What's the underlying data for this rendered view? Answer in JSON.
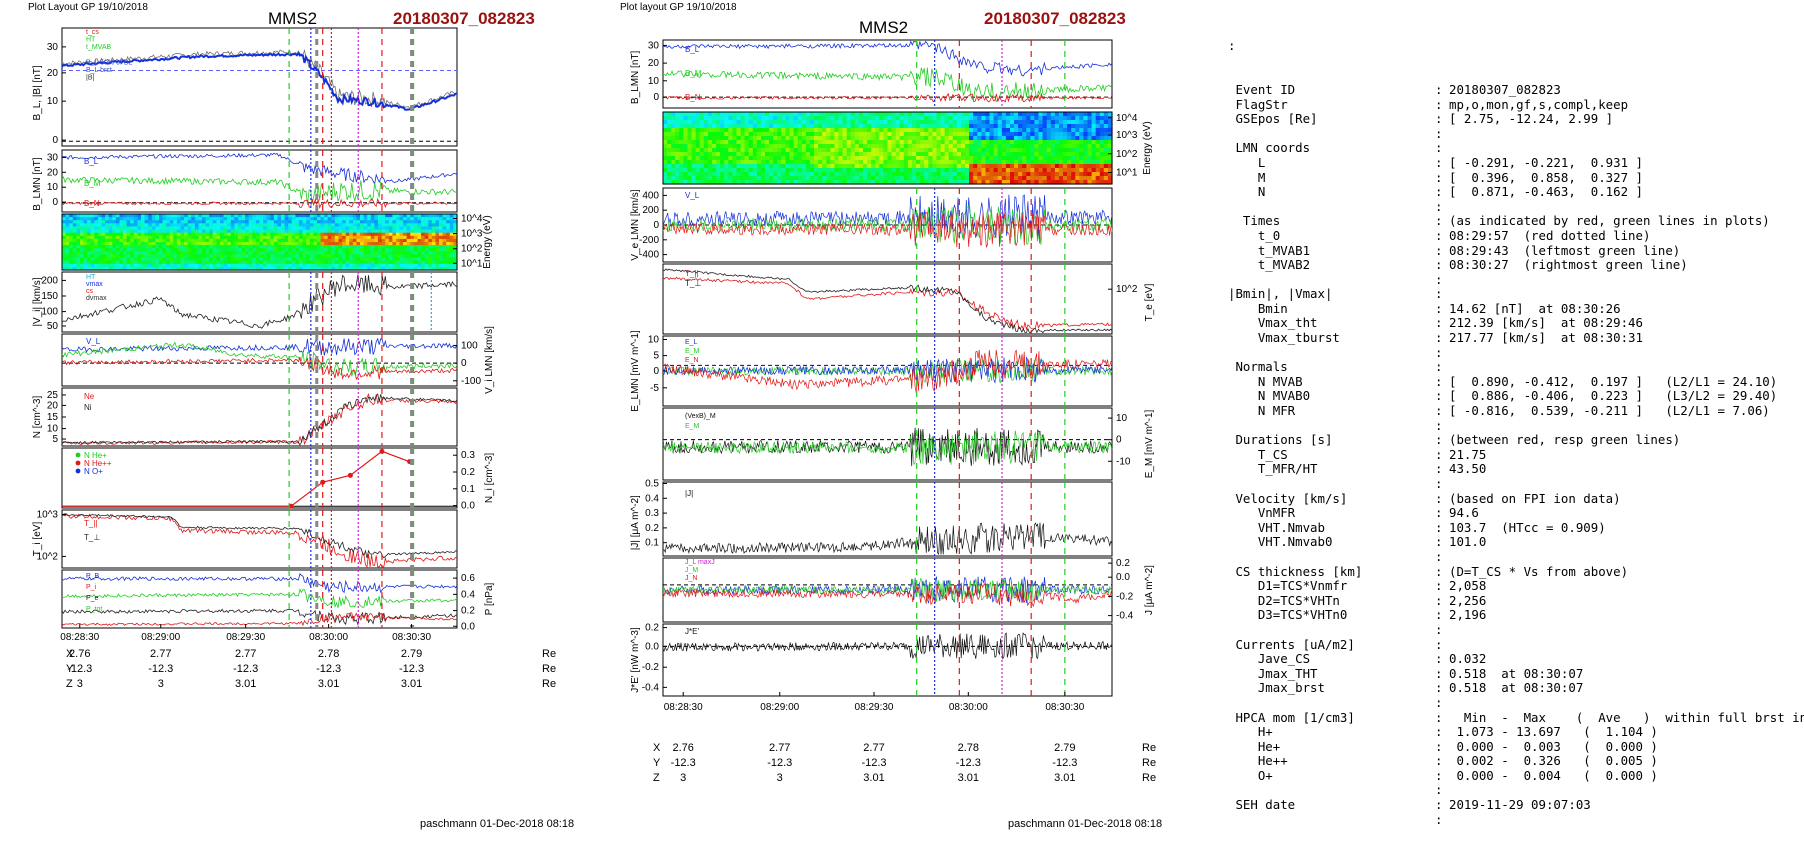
{
  "left_panel": {
    "header": "Plot Layout GP 19/10/2018",
    "spacecraft": "MMS2",
    "event": "20180307_082823",
    "footer": "paschmann 01-Dec-2018 08:18"
  },
  "middle_panel": {
    "header": "Plot layout GP 19/10/2018",
    "spacecraft": "MMS2",
    "event": "20180307_082823",
    "footer": "paschmann 01-Dec-2018 08:18"
  },
  "colors": {
    "blue": "#1530d8",
    "green": "#22cc22",
    "red": "#e01818",
    "black": "#111111",
    "magenta": "#d020d0",
    "gray": "#888888",
    "event_title": "#9a1010",
    "cyan": "#20b0d0"
  },
  "time_ticks": [
    "08:28:30",
    "08:29:00",
    "08:29:30",
    "08:30:00",
    "08:30:30"
  ],
  "position_table": {
    "rows": [
      {
        "label": "X",
        "values": [
          "2.76",
          "2.77",
          "2.77",
          "2.78",
          "2.79"
        ],
        "unit": "Re"
      },
      {
        "label": "Y",
        "values": [
          "-12.3",
          "-12.3",
          "-12.3",
          "-12.3",
          "-12.3"
        ],
        "unit": "Re"
      },
      {
        "label": "Z",
        "values": [
          "3",
          "3",
          "3.01",
          "3.01",
          "3.01"
        ],
        "unit": "Re"
      }
    ]
  },
  "chart_data": [
    {
      "type": "line",
      "name": "left_B_L",
      "ylabel": "B_L, |B| [nT]",
      "yticks": [
        "30",
        "20",
        "10",
        "0"
      ],
      "legend": [
        "t_cs",
        "HT",
        "t_MVAB",
        "",
        "B_L 50% of BL",
        "B_L brst",
        "|B|"
      ]
    },
    {
      "type": "line",
      "name": "left_B_LMN",
      "ylabel": "B_LMN [nT]",
      "yticks": [
        "30",
        "20",
        "10",
        "0"
      ],
      "series_labels": [
        "B_L",
        "B_M",
        "B_N"
      ]
    },
    {
      "type": "heatmap",
      "name": "left_ion_spectrogram",
      "ylabel": "Energy (eV)",
      "yticks": [
        "10^4",
        "10^3",
        "10^2",
        "10^1"
      ]
    },
    {
      "type": "line",
      "name": "left_V",
      "ylabel": "|V_i| [km/s]",
      "yticks": [
        "200",
        "150",
        "100",
        "50"
      ],
      "legend": [
        "HT",
        "vmax",
        "cs",
        "dvmax"
      ]
    },
    {
      "type": "line",
      "name": "left_V_LMN",
      "ylabel": "V_i LMN [km/s]",
      "yticks": [
        "100",
        "0",
        "-100"
      ],
      "series_labels": [
        "V_L"
      ]
    },
    {
      "type": "line",
      "name": "left_N",
      "ylabel": "N [cm^-3]",
      "yticks": [
        "25",
        "20",
        "15",
        "10",
        "5"
      ],
      "legend": [
        "Ne",
        "Ni"
      ]
    },
    {
      "type": "line",
      "name": "left_N_minor",
      "ylabel": "N_i [cm^-3]",
      "yticks": [
        "0.3",
        "0.2",
        "0.1",
        "0.0"
      ],
      "legend": [
        "N He+",
        "N He++",
        "N O+"
      ],
      "series": [
        {
          "name": "N He++",
          "values": [
            0.0,
            0.14,
            0.18,
            0.32,
            0.26
          ]
        }
      ]
    },
    {
      "type": "line",
      "name": "left_T",
      "ylabel": "T_i [eV]",
      "yticks": [
        "10^3",
        "10^2"
      ],
      "series_labels": [
        "T_||",
        "T_⊥"
      ]
    },
    {
      "type": "line",
      "name": "left_P",
      "ylabel": "P [nPa]",
      "yticks": [
        "0.6",
        "0.4",
        "0.2",
        "0.0"
      ],
      "legend": [
        "P_B",
        "P_i",
        "P_e",
        "P_tot"
      ]
    },
    {
      "type": "line",
      "name": "mid_B_LMN",
      "ylabel": "B_LMN [nT]",
      "yticks": [
        "30",
        "20",
        "10",
        "0"
      ],
      "series_labels": [
        "B_L",
        "B_M",
        "B_N"
      ]
    },
    {
      "type": "heatmap",
      "name": "mid_electron_spectrogram",
      "ylabel": "Energy (eV)",
      "yticks": [
        "10^4",
        "10^3",
        "10^2",
        "10^1"
      ]
    },
    {
      "type": "line",
      "name": "mid_Ve",
      "ylabel": "V_e LMN [km/s]",
      "yticks": [
        "400",
        "200",
        "0",
        "-200",
        "-400"
      ],
      "series_labels": [
        "V_L"
      ]
    },
    {
      "type": "line",
      "name": "mid_T",
      "ylabel": "T_e [eV]",
      "yticks": [
        "10^2"
      ],
      "series_labels": [
        "T_||",
        "T_⊥"
      ]
    },
    {
      "type": "line",
      "name": "mid_E",
      "ylabel": "E_LMN [mV m^-1]",
      "yticks": [
        "10",
        "5",
        "0",
        "-5"
      ],
      "series_labels": [
        "E_L",
        "E_M",
        "E_N"
      ]
    },
    {
      "type": "line",
      "name": "mid_EM",
      "ylabel": "E_M [mV m^-1]",
      "yticks": [
        "10",
        "0",
        "-10"
      ],
      "series_labels": [
        "(VexB)_M",
        "E_M"
      ]
    },
    {
      "type": "line",
      "name": "mid_J",
      "ylabel": "|J| [μA m^-2]",
      "yticks": [
        "0.5",
        "0.4",
        "0.3",
        "0.2",
        "0.1"
      ],
      "series_labels": [
        "|J|"
      ]
    },
    {
      "type": "line",
      "name": "mid_J_LMN",
      "ylabel": "J [μA m^-2]",
      "yticks": [
        "0.2",
        "0.0",
        "-0.2",
        "-0.4"
      ],
      "series_labels": [
        "J_L maxJ",
        "J_M",
        "J_N"
      ]
    },
    {
      "type": "line",
      "name": "mid_JE",
      "ylabel": "J*E' [nW m^-3]",
      "yticks": [
        "0.2",
        "0.0",
        "-0.2",
        "-0.4"
      ],
      "series_labels": [
        "J*E'"
      ]
    }
  ],
  "event_info": {
    "top_colon": ":",
    "rows": [
      {
        "k": " Event ID",
        "c": ":",
        "v": "20180307_082823"
      },
      {
        "k": " FlagStr",
        "c": ":",
        "v": "mp,o,mon,gf,s,compl,keep"
      },
      {
        "k": " GSEpos [Re]",
        "c": ":",
        "v": "[ 2.75, -12.24, 2.99 ]"
      },
      {
        "k": "",
        "c": ":",
        "v": ""
      },
      {
        "k": " LMN coords",
        "c": ":",
        "v": ""
      },
      {
        "k": "    L",
        "c": ":",
        "v": "[ -0.291, -0.221,  0.931 ]"
      },
      {
        "k": "    M",
        "c": ":",
        "v": "[  0.396,  0.858,  0.327 ]"
      },
      {
        "k": "    N",
        "c": ":",
        "v": "[  0.871, -0.463,  0.162 ]"
      },
      {
        "k": "",
        "c": ":",
        "v": ""
      },
      {
        "k": "  Times",
        "c": ":",
        "v": "(as indicated by red, green lines in plots)"
      },
      {
        "k": "    t_0",
        "c": ":",
        "v": "08:29:57  (red dotted line)"
      },
      {
        "k": "    t_MVAB1",
        "c": ":",
        "v": "08:29:43  (leftmost green line)"
      },
      {
        "k": "    t_MVAB2",
        "c": ":",
        "v": "08:30:27  (rightmost green line)"
      },
      {
        "k": "",
        "c": ":",
        "v": ""
      },
      {
        "k": "|Bmin|, |Vmax|",
        "c": ":",
        "v": ""
      },
      {
        "k": "    Bmin",
        "c": ":",
        "v": "14.62 [nT]  at 08:30:26"
      },
      {
        "k": "    Vmax_tht",
        "c": ":",
        "v": "212.39 [km/s]  at 08:29:46"
      },
      {
        "k": "    Vmax_tburst",
        "c": ":",
        "v": "217.77 [km/s]  at 08:30:31"
      },
      {
        "k": "",
        "c": ":",
        "v": ""
      },
      {
        "k": " Normals",
        "c": ":",
        "v": ""
      },
      {
        "k": "    N MVAB",
        "c": ":",
        "v": "[  0.890, -0.412,  0.197 ]   (L2/L1 = 24.10)"
      },
      {
        "k": "    N MVAB0",
        "c": ":",
        "v": "[  0.886, -0.406,  0.223 ]   (L3/L2 = 29.40)"
      },
      {
        "k": "    N MFR",
        "c": ":",
        "v": "[ -0.816,  0.539, -0.211 ]   (L2/L1 = 7.06)"
      },
      {
        "k": "",
        "c": ":",
        "v": ""
      },
      {
        "k": " Durations [s]",
        "c": ":",
        "v": "(between red, resp green lines)"
      },
      {
        "k": "    T_CS",
        "c": ":",
        "v": "21.75"
      },
      {
        "k": "    T_MFR/HT",
        "c": ":",
        "v": "43.50"
      },
      {
        "k": "",
        "c": ":",
        "v": ""
      },
      {
        "k": " Velocity [km/s]",
        "c": ":",
        "v": "(based on FPI ion data)"
      },
      {
        "k": "    VnMFR",
        "c": ":",
        "v": "94.6"
      },
      {
        "k": "    VHT.Nmvab",
        "c": ":",
        "v": "103.7  (HTcc = 0.909)"
      },
      {
        "k": "    VHT.Nmvab0",
        "c": ":",
        "v": "101.0"
      },
      {
        "k": "",
        "c": ":",
        "v": ""
      },
      {
        "k": " CS thickness [km]",
        "c": ":",
        "v": "(D=T_CS * Vs from above)"
      },
      {
        "k": "    D1=TCS*Vnmfr",
        "c": ":",
        "v": "2,058"
      },
      {
        "k": "    D2=TCS*VHTn",
        "c": ":",
        "v": "2,256"
      },
      {
        "k": "    D3=TCS*VHTn0",
        "c": ":",
        "v": "2,196"
      },
      {
        "k": "",
        "c": ":",
        "v": ""
      },
      {
        "k": " Currents [uA/m2]",
        "c": ":",
        "v": ""
      },
      {
        "k": "    Jave_CS",
        "c": ":",
        "v": "0.032"
      },
      {
        "k": "    Jmax_THT",
        "c": ":",
        "v": "0.518  at 08:30:07"
      },
      {
        "k": "    Jmax_brst",
        "c": ":",
        "v": "0.518  at 08:30:07"
      },
      {
        "k": "",
        "c": ":",
        "v": ""
      },
      {
        "k": " HPCA mom [1/cm3]",
        "c": ":",
        "v": "  Min  -  Max    (  Ave   )  within full brst int"
      },
      {
        "k": "    H+",
        "c": ":",
        "v": " 1.073 - 13.697   (  1.104 )"
      },
      {
        "k": "    He+",
        "c": ":",
        "v": " 0.000 -  0.003   (  0.000 )"
      },
      {
        "k": "    He++",
        "c": ":",
        "v": " 0.002 -  0.326   (  0.005 )"
      },
      {
        "k": "    O+",
        "c": ":",
        "v": " 0.000 -  0.004   (  0.000 )"
      },
      {
        "k": "",
        "c": ":",
        "v": ""
      },
      {
        "k": " SEH date",
        "c": ":",
        "v": "2019-11-29 09:07:03"
      },
      {
        "k": "",
        "c": ":",
        "v": ""
      }
    ]
  }
}
